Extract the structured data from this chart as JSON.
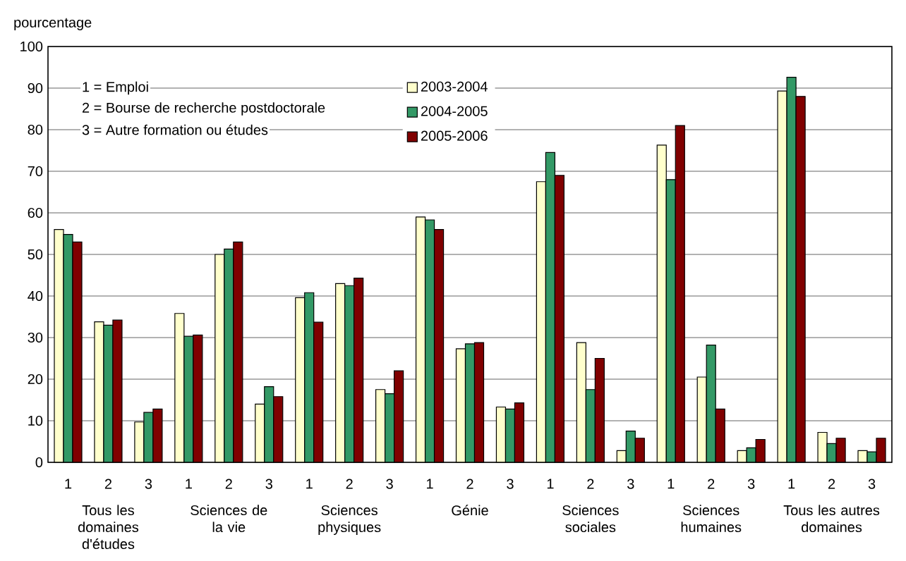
{
  "chart_data": {
    "type": "bar",
    "ylabel": "pourcentage",
    "categories": [
      "1",
      "2",
      "3",
      "1",
      "2",
      "3",
      "1",
      "2",
      "3",
      "1",
      "2",
      "3",
      "1",
      "2",
      "3",
      "1",
      "2",
      "3",
      "1",
      "2",
      "3"
    ],
    "series": [
      {
        "name": "2003-2004",
        "color": "#ffffcc",
        "values": [
          56,
          33.8,
          9.7,
          35.8,
          50,
          14,
          39.6,
          43,
          17.5,
          59,
          27.3,
          13.3,
          67.5,
          28.8,
          2.8,
          76.3,
          20.5,
          2.8,
          89.3,
          7.2,
          2.8
        ]
      },
      {
        "name": "2004-2005",
        "color": "#339966",
        "values": [
          54.8,
          33,
          12,
          30.3,
          51.3,
          18.2,
          40.8,
          42.5,
          16.5,
          58.3,
          28.5,
          12.8,
          74.5,
          17.5,
          7.5,
          68,
          28.2,
          3.5,
          92.6,
          4.5,
          2.5
        ]
      },
      {
        "name": "2005-2006",
        "color": "#800000",
        "values": [
          53,
          34.2,
          12.8,
          30.6,
          53,
          15.8,
          33.7,
          44.3,
          22,
          56,
          28.8,
          14.3,
          69,
          25,
          5.8,
          81,
          12.8,
          5.5,
          88,
          5.8,
          5.8
        ]
      }
    ],
    "ylim": [
      0,
      100
    ],
    "yticks": [
      0,
      10,
      20,
      30,
      40,
      50,
      60,
      70,
      80,
      90,
      100
    ],
    "grid": "y",
    "legend": "top",
    "annotations": [
      "1 =  Emploi",
      "2 =  Bourse de recherche postdoctorale",
      "3 = Autre formation ou études",
      "Tous les domaines d'études",
      "Sciences de la vie",
      "Sciences physiques",
      "Génie",
      "Sciences sociales",
      "Sciences humaines",
      "Tous les autres domaines"
    ]
  }
}
